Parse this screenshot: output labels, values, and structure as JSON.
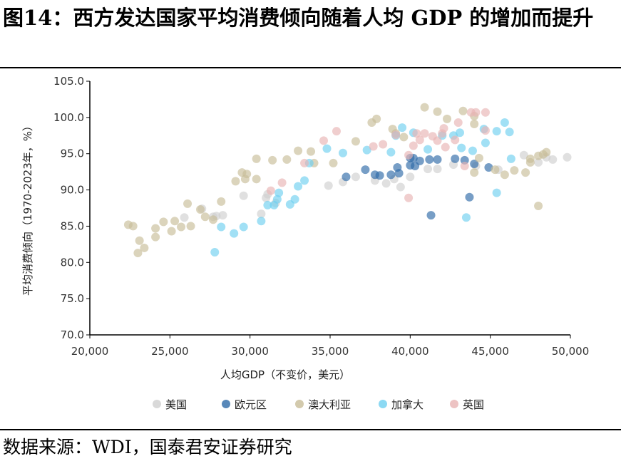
{
  "title": "图14：西方发达国家平均消费倾向随着人均 GDP 的增加而提升",
  "source": "数据来源：WDI，国泰君安证券研究",
  "chart_data": {
    "type": "scatter",
    "xlabel": "人均GDP（不变价，美元）",
    "ylabel": "平均消费倾向（1970-2023年，%）",
    "xlim": [
      20000,
      50000
    ],
    "ylim": [
      70,
      105
    ],
    "xticks": [
      "20,000",
      "25,000",
      "30,000",
      "35,000",
      "40,000",
      "45,000",
      "50,000"
    ],
    "yticks": [
      "70.0",
      "75.0",
      "80.0",
      "85.0",
      "90.0",
      "95.0",
      "100.0",
      "105.0"
    ],
    "grid": false,
    "legend": "bottom",
    "series": [
      {
        "name": "美国",
        "color": "#cfcfcf",
        "points": [
          [
            25900,
            86.2
          ],
          [
            27000,
            87.4
          ],
          [
            27700,
            86.3
          ],
          [
            27900,
            86.4
          ],
          [
            28300,
            86.5
          ],
          [
            29600,
            89.2
          ],
          [
            30700,
            86.7
          ],
          [
            31000,
            88.9
          ],
          [
            31100,
            89.4
          ],
          [
            31600,
            88.2
          ],
          [
            34900,
            90.6
          ],
          [
            35800,
            91.1
          ],
          [
            36600,
            91.8
          ],
          [
            37800,
            91.3
          ],
          [
            38500,
            90.9
          ],
          [
            39000,
            91.5
          ],
          [
            39400,
            90.4
          ],
          [
            40000,
            91.8
          ],
          [
            41100,
            92.9
          ],
          [
            41700,
            92.9
          ],
          [
            42700,
            93.5
          ],
          [
            44100,
            93.3
          ],
          [
            45500,
            92.8
          ],
          [
            47100,
            94.8
          ],
          [
            48000,
            93.8
          ],
          [
            48500,
            94.5
          ],
          [
            48900,
            94.2
          ],
          [
            49800,
            94.5
          ]
        ]
      },
      {
        "name": "欧元区",
        "color": "#2e6aa8",
        "points": [
          [
            36000,
            91.8
          ],
          [
            37200,
            92.8
          ],
          [
            37800,
            92.1
          ],
          [
            38100,
            92.0
          ],
          [
            38800,
            92.1
          ],
          [
            39200,
            93.1
          ],
          [
            39300,
            92.3
          ],
          [
            40000,
            94.4
          ],
          [
            40200,
            94.4
          ],
          [
            40000,
            93.4
          ],
          [
            40600,
            94.0
          ],
          [
            40300,
            93.3
          ],
          [
            41200,
            94.2
          ],
          [
            41700,
            94.2
          ],
          [
            42800,
            94.3
          ],
          [
            43400,
            94.1
          ],
          [
            44000,
            93.6
          ],
          [
            44900,
            93.1
          ],
          [
            43700,
            89.0
          ],
          [
            41300,
            86.5
          ]
        ]
      },
      {
        "name": "澳大利亚",
        "color": "#c8bd98",
        "points": [
          [
            22400,
            85.2
          ],
          [
            22700,
            85.0
          ],
          [
            23100,
            83.0
          ],
          [
            23000,
            81.3
          ],
          [
            23400,
            82.0
          ],
          [
            24100,
            84.7
          ],
          [
            24100,
            83.5
          ],
          [
            24600,
            85.6
          ],
          [
            25100,
            84.3
          ],
          [
            25300,
            85.7
          ],
          [
            25700,
            84.9
          ],
          [
            26100,
            88.1
          ],
          [
            26300,
            85.0
          ],
          [
            26900,
            87.3
          ],
          [
            27200,
            86.3
          ],
          [
            27700,
            85.9
          ],
          [
            28200,
            88.4
          ],
          [
            29100,
            91.2
          ],
          [
            29500,
            92.4
          ],
          [
            29800,
            92.2
          ],
          [
            29700,
            91.5
          ],
          [
            30400,
            91.5
          ],
          [
            30400,
            94.3
          ],
          [
            31400,
            94.1
          ],
          [
            32300,
            94.2
          ],
          [
            33000,
            95.4
          ],
          [
            33800,
            95.3
          ],
          [
            34000,
            93.7
          ],
          [
            35200,
            93.7
          ],
          [
            36600,
            96.7
          ],
          [
            37600,
            99.3
          ],
          [
            37900,
            99.8
          ],
          [
            38900,
            98.4
          ],
          [
            39100,
            97.8
          ],
          [
            39600,
            97.3
          ],
          [
            40900,
            101.4
          ],
          [
            41700,
            100.8
          ],
          [
            42300,
            99.8
          ],
          [
            43300,
            100.9
          ],
          [
            44000,
            100.2
          ],
          [
            44000,
            99.1
          ],
          [
            44300,
            94.4
          ],
          [
            44000,
            92.4
          ],
          [
            45300,
            92.8
          ],
          [
            45900,
            92.1
          ],
          [
            46500,
            92.7
          ],
          [
            47200,
            92.4
          ],
          [
            47500,
            94.3
          ],
          [
            47500,
            93.8
          ],
          [
            48000,
            87.8
          ],
          [
            48000,
            94.7
          ],
          [
            48500,
            95.2
          ],
          [
            48300,
            94.9
          ]
        ]
      },
      {
        "name": "加拿大",
        "color": "#6fd0f0",
        "points": [
          [
            27800,
            81.4
          ],
          [
            28200,
            84.9
          ],
          [
            29000,
            84.0
          ],
          [
            29600,
            84.9
          ],
          [
            30700,
            85.7
          ],
          [
            31100,
            87.9
          ],
          [
            31500,
            87.9
          ],
          [
            31700,
            88.7
          ],
          [
            31800,
            89.6
          ],
          [
            32500,
            88.0
          ],
          [
            32800,
            88.7
          ],
          [
            33000,
            90.5
          ],
          [
            33400,
            91.3
          ],
          [
            33700,
            93.7
          ],
          [
            34800,
            95.7
          ],
          [
            35800,
            95.1
          ],
          [
            37300,
            95.5
          ],
          [
            38800,
            95.2
          ],
          [
            39100,
            97.5
          ],
          [
            39500,
            98.6
          ],
          [
            40200,
            97.9
          ],
          [
            41100,
            95.6
          ],
          [
            42000,
            97.5
          ],
          [
            42700,
            97.5
          ],
          [
            43100,
            97.9
          ],
          [
            43200,
            95.8
          ],
          [
            43900,
            95.4
          ],
          [
            44600,
            98.4
          ],
          [
            44700,
            96.5
          ],
          [
            45400,
            98.1
          ],
          [
            45900,
            99.3
          ],
          [
            46200,
            98.0
          ],
          [
            46300,
            94.3
          ],
          [
            45400,
            89.6
          ],
          [
            43500,
            86.2
          ]
        ]
      },
      {
        "name": "英国",
        "color": "#e8b4b4",
        "points": [
          [
            34600,
            96.8
          ],
          [
            35400,
            98.1
          ],
          [
            37700,
            96.0
          ],
          [
            38300,
            96.3
          ],
          [
            39100,
            97.6
          ],
          [
            39900,
            94.8
          ],
          [
            40200,
            96.1
          ],
          [
            40400,
            97.8
          ],
          [
            40600,
            96.9
          ],
          [
            40900,
            97.8
          ],
          [
            41400,
            97.4
          ],
          [
            41700,
            96.8
          ],
          [
            42000,
            97.8
          ],
          [
            42100,
            98.5
          ],
          [
            42200,
            95.9
          ],
          [
            42800,
            96.9
          ],
          [
            43000,
            99.3
          ],
          [
            43800,
            100.7
          ],
          [
            44100,
            100.7
          ],
          [
            44700,
            100.7
          ],
          [
            44700,
            98.2
          ],
          [
            39900,
            88.9
          ],
          [
            31300,
            89.9
          ],
          [
            32000,
            91.0
          ],
          [
            33400,
            93.7
          ],
          [
            43400,
            93.3
          ]
        ]
      }
    ]
  }
}
